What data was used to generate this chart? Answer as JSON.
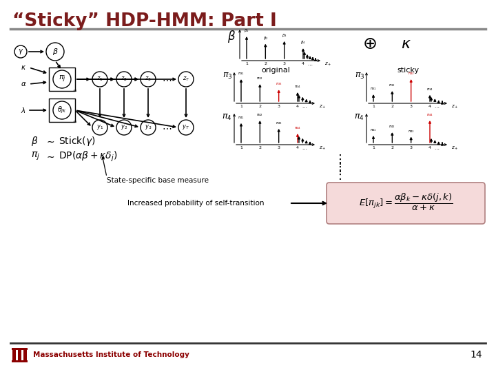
{
  "title": "“Sticky” HDP-HMM: Part I",
  "title_color": "#7B1C1C",
  "background_color": "#FFFFFF",
  "slide_number": "14",
  "footer_text": "Massachusetts Institute of Technology",
  "mit_logo_color": "#8B0000",
  "separator_color": "#888888",
  "text_color": "#000000",
  "red_color": "#CC0000",
  "label_original": "original",
  "label_sticky": "sticky",
  "state_specific_text": "State-specific base measure",
  "increased_prob_text": "Increased probability of self-transition"
}
